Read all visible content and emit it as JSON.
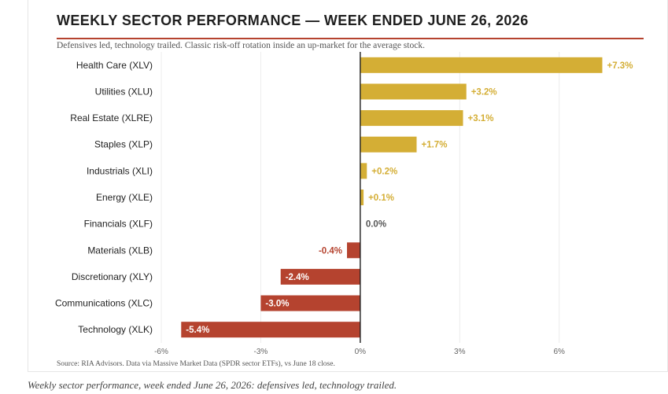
{
  "chart_data": {
    "type": "bar",
    "orientation": "horizontal",
    "title": "WEEKLY SECTOR PERFORMANCE — WEEK ENDED JUNE 26, 2026",
    "subtitle": "Defensives led, technology trailed. Classic risk-off rotation inside an up-market for the average stock.",
    "categories": [
      "Health Care (XLV)",
      "Utilities (XLU)",
      "Real Estate (XLRE)",
      "Staples (XLP)",
      "Industrials (XLI)",
      "Energy (XLE)",
      "Financials (XLF)",
      "Materials (XLB)",
      "Discretionary (XLY)",
      "Communications (XLC)",
      "Technology (XLK)"
    ],
    "values": [
      7.3,
      3.2,
      3.1,
      1.7,
      0.2,
      0.1,
      0.0,
      -0.4,
      -2.4,
      -3.0,
      -5.4
    ],
    "value_labels": [
      "+7.3%",
      "+3.2%",
      "+3.1%",
      "+1.7%",
      "+0.2%",
      "+0.1%",
      "0.0%",
      "-0.4%",
      "-2.4%",
      "-3.0%",
      "-5.4%"
    ],
    "xlim": [
      -6,
      8
    ],
    "xticks": [
      -6,
      -3,
      0,
      3,
      6
    ],
    "xtick_labels": [
      "-6%",
      "-3%",
      "0%",
      "3%",
      "6%"
    ],
    "xlabel": "",
    "ylabel": "",
    "grid": true,
    "legend": "none",
    "colors": {
      "positive": "#d4ae35",
      "negative": "#b5432f",
      "zero": "#555555",
      "rule": "#b5432f"
    },
    "source": "Source: RIA Advisors. Data via Massive Market Data (SPDR sector ETFs), vs June 18 close."
  },
  "caption": "Weekly sector performance, week ended June 26, 2026: defensives led, technology trailed."
}
